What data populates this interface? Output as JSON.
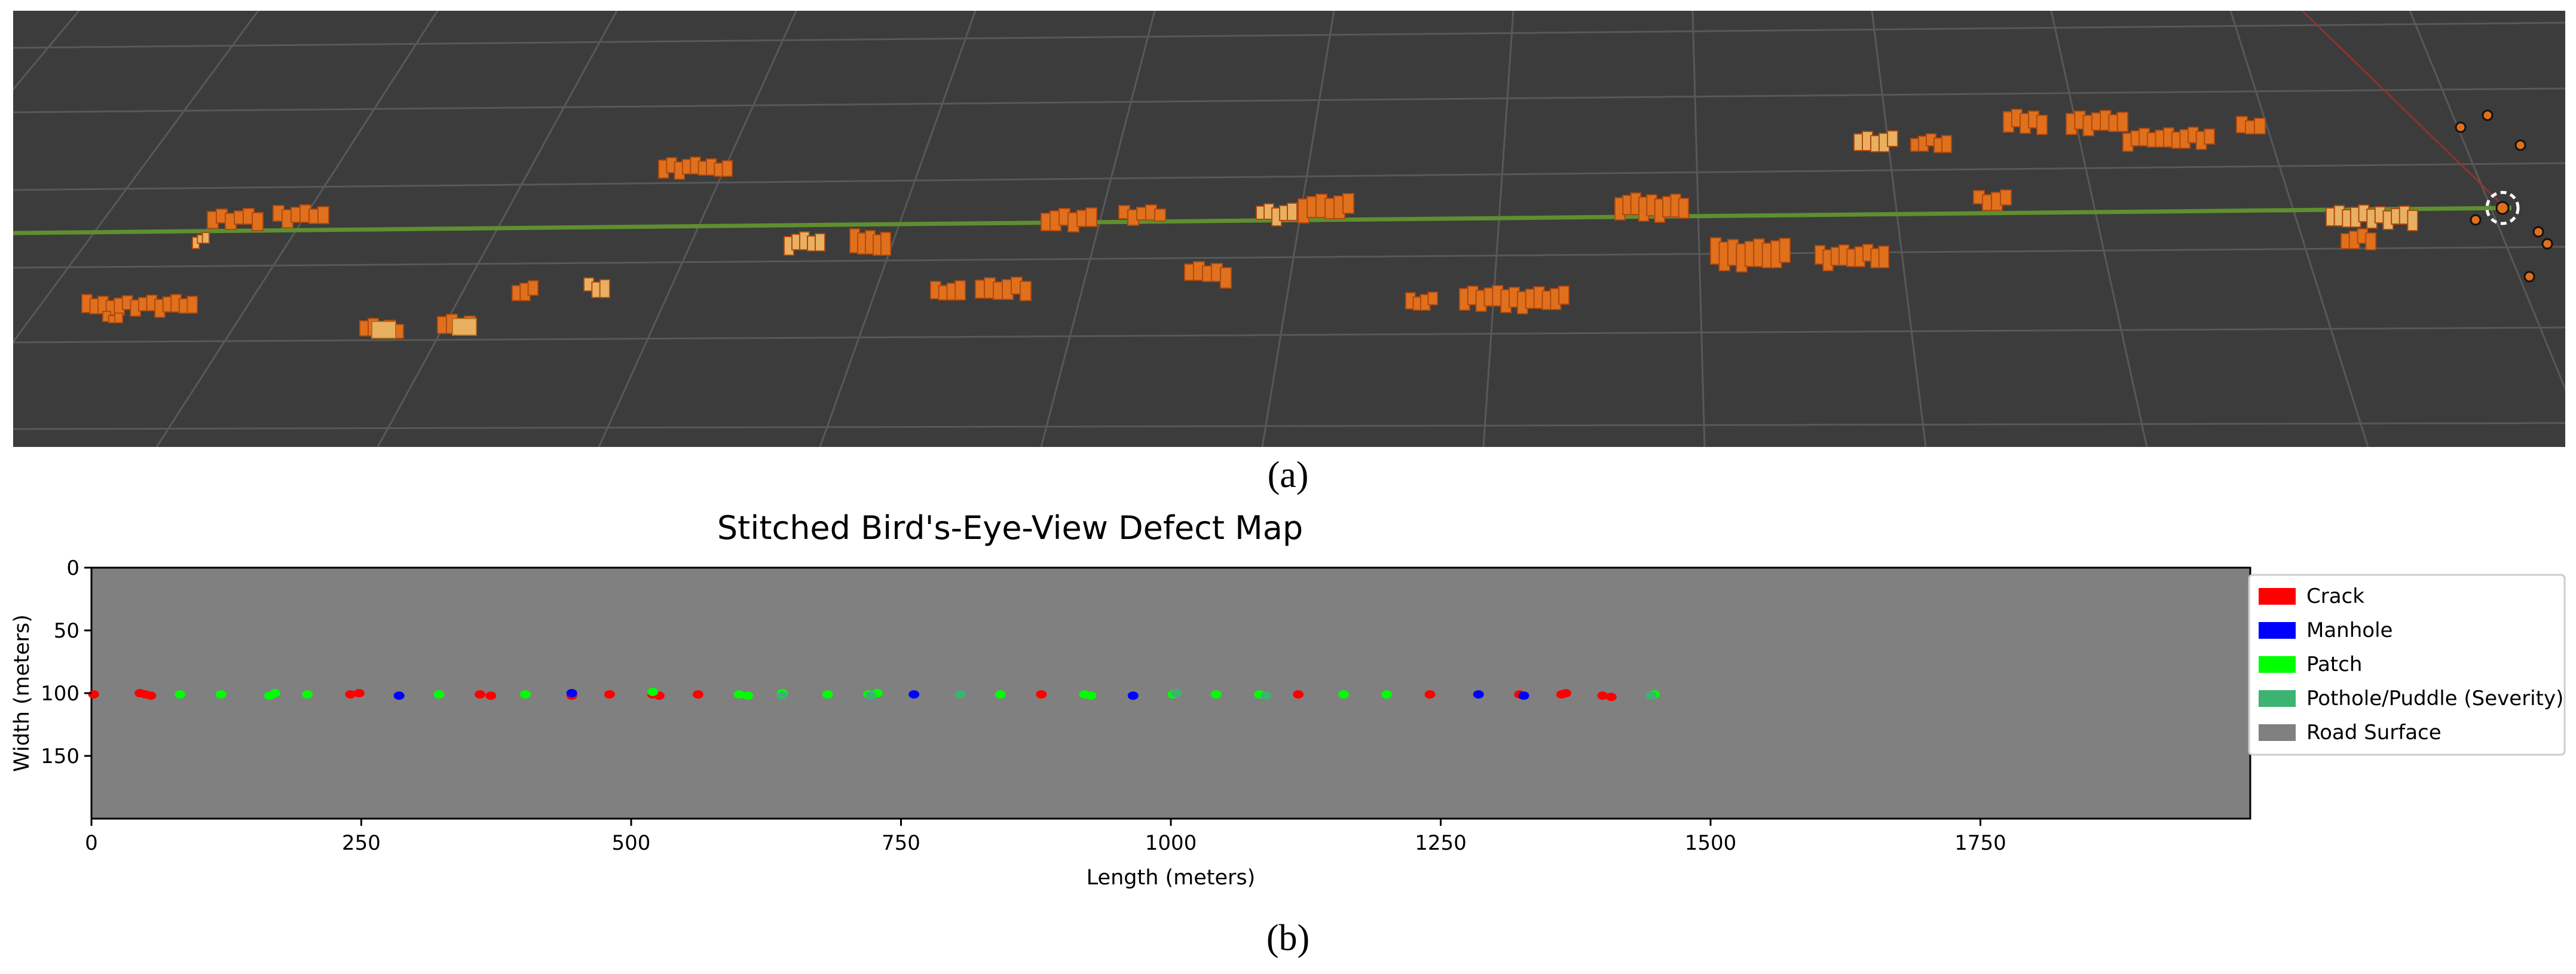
{
  "panel_a": {
    "caption": "(a)",
    "description_colors": {
      "background": "#3c3c3c",
      "grid": "#5a5a5a",
      "trajectory": "#5a8a2e",
      "defect": "#e0701c",
      "defect_light": "#e8a050"
    }
  },
  "panel_b": {
    "caption": "(b)"
  },
  "chart_data": {
    "type": "scatter",
    "title": "Stitched Bird's-Eye-View Defect Map",
    "xlabel": "Length (meters)",
    "ylabel": "Width (meters)",
    "xlim": [
      0,
      2000
    ],
    "ylim": [
      200,
      0
    ],
    "xticks": [
      0,
      250,
      500,
      750,
      1000,
      1250,
      1500,
      1750
    ],
    "yticks": [
      0,
      50,
      100,
      150
    ],
    "background_color": "#808080",
    "legend": [
      {
        "label": "Crack",
        "color": "#ff0000"
      },
      {
        "label": "Manhole",
        "color": "#0000ff"
      },
      {
        "label": "Patch",
        "color": "#00ff00"
      },
      {
        "label": "Pothole/Puddle (Severity)",
        "color": "#3cb371"
      },
      {
        "label": "Road Surface",
        "color": "#808080"
      }
    ],
    "series": [
      {
        "name": "Crack",
        "color": "#ff0000",
        "points": [
          [
            2,
            101
          ],
          [
            45,
            100
          ],
          [
            50,
            101
          ],
          [
            55,
            102
          ],
          [
            240,
            101
          ],
          [
            248,
            100
          ],
          [
            360,
            101
          ],
          [
            370,
            102
          ],
          [
            445,
            102
          ],
          [
            480,
            101
          ],
          [
            520,
            101
          ],
          [
            526,
            102
          ],
          [
            562,
            101
          ],
          [
            880,
            101
          ],
          [
            1118,
            101
          ],
          [
            1240,
            101
          ],
          [
            1323,
            101
          ],
          [
            1362,
            101
          ],
          [
            1366,
            100
          ],
          [
            1400,
            102
          ],
          [
            1408,
            103
          ]
        ]
      },
      {
        "name": "Manhole",
        "color": "#0000ff",
        "points": [
          [
            285,
            102
          ],
          [
            445,
            100
          ],
          [
            762,
            101
          ],
          [
            965,
            102
          ],
          [
            1285,
            101
          ],
          [
            1327,
            102
          ]
        ]
      },
      {
        "name": "Patch",
        "color": "#00ff00",
        "points": [
          [
            82,
            101
          ],
          [
            120,
            101
          ],
          [
            165,
            102
          ],
          [
            170,
            100
          ],
          [
            200,
            101
          ],
          [
            322,
            101
          ],
          [
            402,
            101
          ],
          [
            520,
            99
          ],
          [
            600,
            101
          ],
          [
            608,
            102
          ],
          [
            640,
            100
          ],
          [
            682,
            101
          ],
          [
            720,
            101
          ],
          [
            728,
            100
          ],
          [
            842,
            101
          ],
          [
            920,
            101
          ],
          [
            926,
            102
          ],
          [
            1002,
            101
          ],
          [
            1042,
            101
          ],
          [
            1082,
            101
          ],
          [
            1160,
            101
          ],
          [
            1200,
            101
          ],
          [
            1448,
            101
          ]
        ]
      },
      {
        "name": "Pothole/Puddle (Severity)",
        "color": "#3cb371",
        "points": [
          [
            640,
            102
          ],
          [
            722,
            102
          ],
          [
            805,
            101
          ],
          [
            1005,
            100
          ],
          [
            1088,
            102
          ],
          [
            1445,
            102
          ]
        ]
      }
    ]
  }
}
